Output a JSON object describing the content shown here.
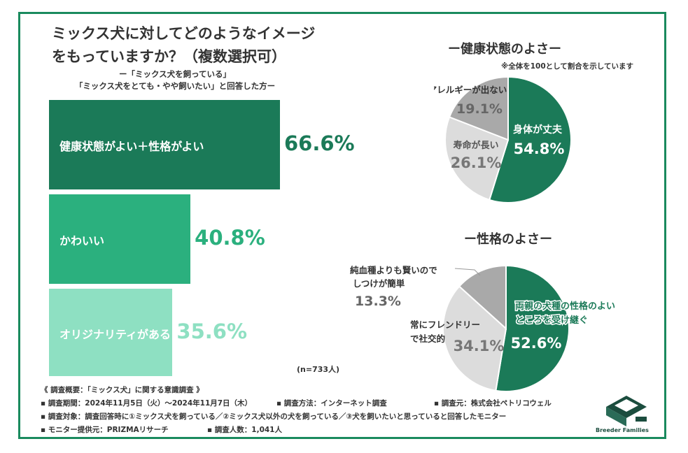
{
  "title_line1": "ミックス犬に対してどのようなイメージ",
  "title_line2": "をもっていますか？（複数選択可）",
  "subtitle_line1": "ー「ミックス犬を飼っている」",
  "subtitle_line2": "「ミックス犬をとても・やや飼いたい」と回答した方ー",
  "n_note": "(n=733人)",
  "colors": {
    "frame": "#1a8a5e",
    "bar1": "#1b7a58",
    "bar2": "#2bb07e",
    "bar3": "#8ee0c2",
    "pie_green": "#1b7a58",
    "pie_gray_dark": "#a9a9a9",
    "pie_gray_light": "#dcdcdc"
  },
  "chart_data": [
    {
      "type": "bar",
      "orientation": "horizontal",
      "categories": [
        "健康状態がよい＋性格がよい",
        "かわいい",
        "オリジナリティがある"
      ],
      "values": [
        66.6,
        40.8,
        35.6
      ],
      "value_labels": [
        "66.6%",
        "40.8%",
        "35.6%"
      ],
      "unit": "%"
    },
    {
      "type": "pie",
      "title": "ー健康状態のよさー",
      "note": "※全体を100として割合を示しています",
      "slices": [
        {
          "label": "身体が丈夫",
          "value": 54.8,
          "value_label": "54.8%"
        },
        {
          "label": "寿命が長い",
          "value": 26.1,
          "value_label": "26.1%"
        },
        {
          "label": "アレルギーが出ない",
          "value": 19.1,
          "value_label": "19.1%"
        }
      ]
    },
    {
      "type": "pie",
      "title": "ー性格のよさー",
      "slices": [
        {
          "label_line1": "両親の犬種の性格のよい",
          "label_line2": "ところを受け継ぐ",
          "value": 52.6,
          "value_label": "52.6%"
        },
        {
          "label_line1": "常にフレンドリー",
          "label_line2": "で社交的",
          "value": 34.1,
          "value_label": "34.1%"
        },
        {
          "label_line1": "純血種よりも賢いので",
          "label_line2": "しつけが簡単",
          "value": 13.3,
          "value_label": "13.3%"
        }
      ]
    }
  ],
  "footer": {
    "heading": "《 調査概要：「ミックス犬」に関する意識調査 》",
    "period": "▪ 調査期間：2024年11月5日（火）～2024年11月7日（木）",
    "method": "▪ 調査方法：インターネット調査",
    "source": "▪ 調査元：株式会社ペトリコウェル",
    "target": "▪ 調査対象：調査回答時に①ミックス犬を飼っている／②ミックス犬以外の犬を飼っている／③犬を飼いたいと思っていると回答したモニター",
    "provider": "▪ モニター提供元：PRIZMAリサーチ",
    "count": "▪ 調査人数：1,041人"
  },
  "logo_text": "Breeder Families"
}
